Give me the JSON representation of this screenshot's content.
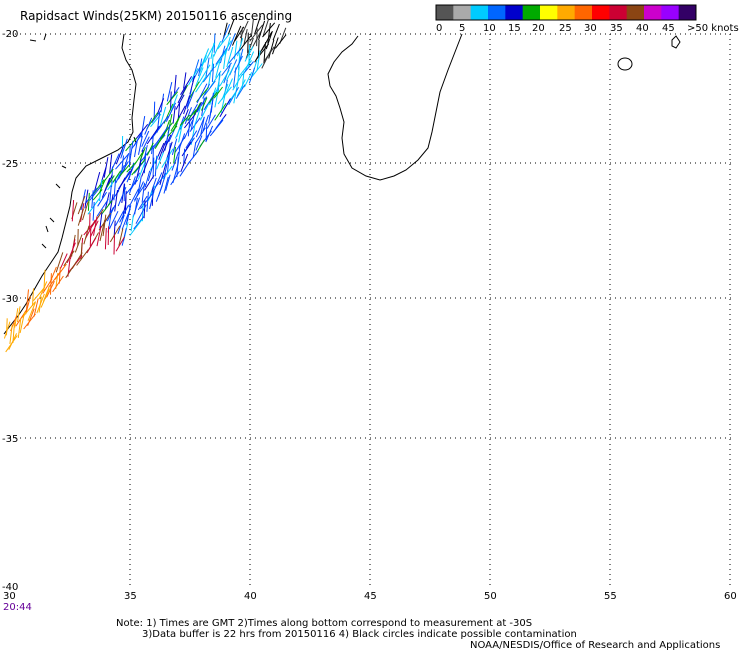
{
  "title": "Rapidsact Winds(25KM) 20150116 ascending",
  "legend": {
    "labels": [
      "0",
      "5",
      "10",
      "15",
      "20",
      "25",
      "30",
      "35",
      "40",
      "45",
      ">50 knots"
    ],
    "colors": [
      "#555555",
      "#aaaaaa",
      "#00ccff",
      "#0066ff",
      "#0000cc",
      "#00aa00",
      "#ffff00",
      "#ffaa00",
      "#ff6600",
      "#ff0000",
      "#cc0033",
      "#8b4513",
      "#cc00cc",
      "#9900ff",
      "#330066"
    ]
  },
  "axes": {
    "lat_labels": [
      "-20",
      "-25",
      "-30",
      "-35",
      "-40"
    ],
    "lon_labels": [
      "30",
      "35",
      "40",
      "45",
      "50",
      "55",
      "60"
    ]
  },
  "pass_time": "20:44",
  "notes": [
    "Note: 1) Times are GMT 2)Times along bottom correspond to measurement at -30S",
    "3)Data buffer is 22 hrs from 20150116 4) Black circles indicate possible contamination",
    "NOAA/NESDIS/Office of Research and Applications"
  ]
}
